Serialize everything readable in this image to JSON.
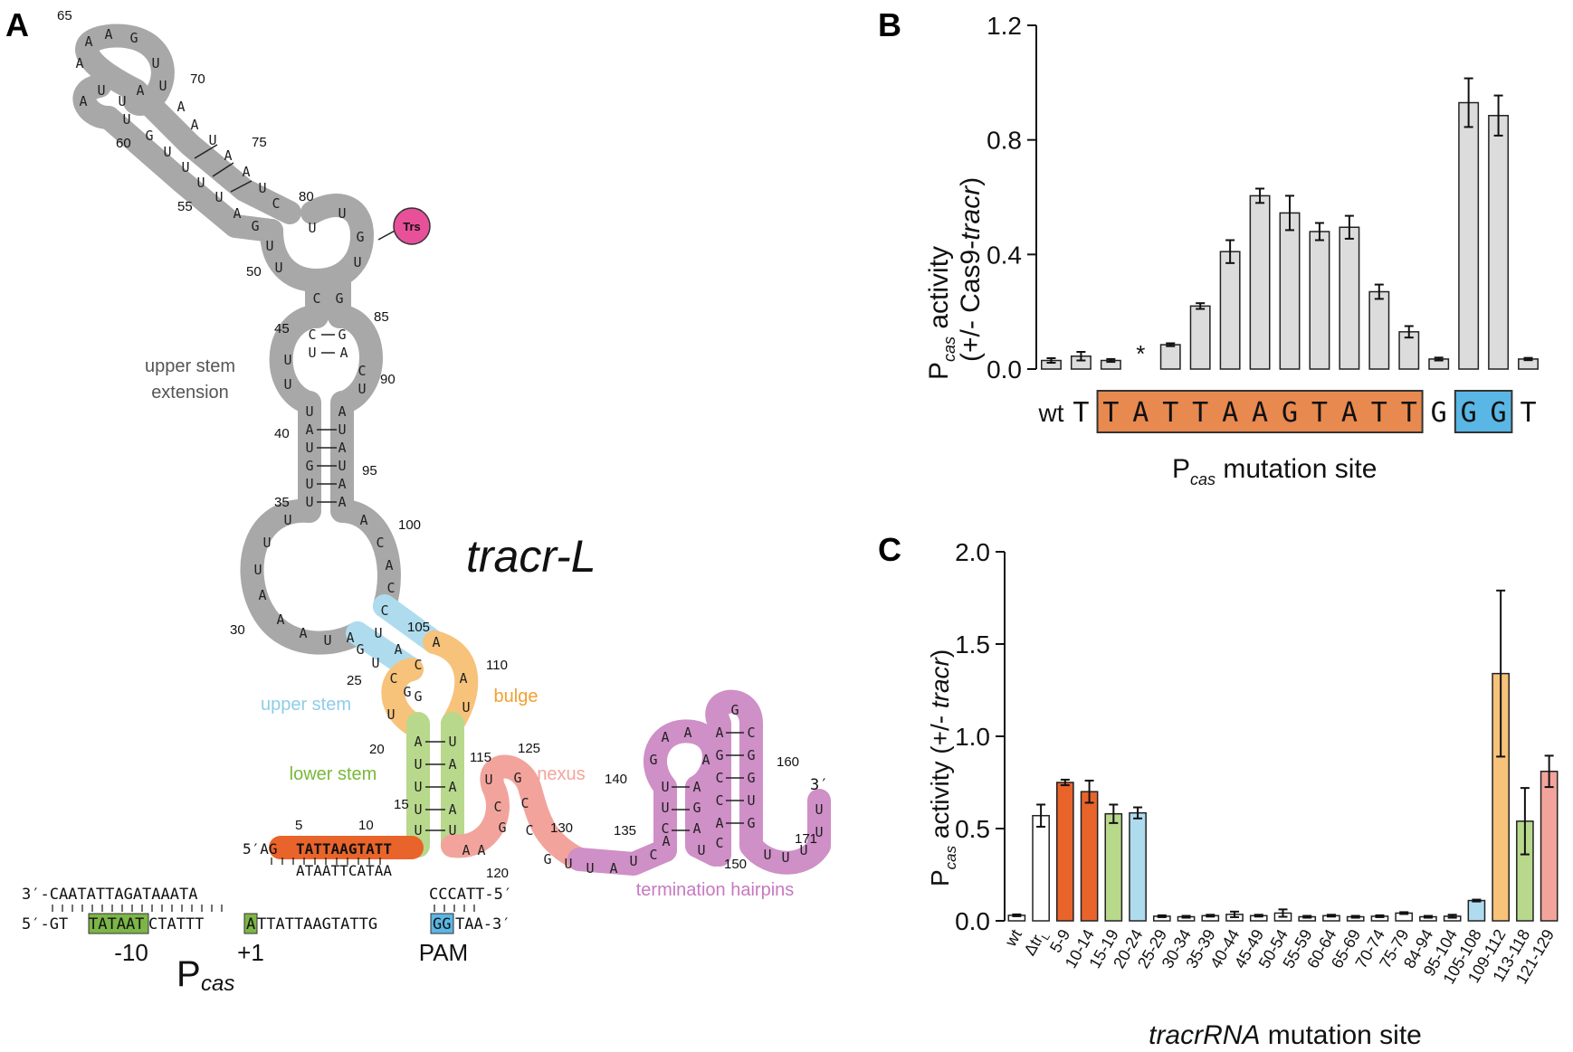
{
  "panels": {
    "a": "A",
    "b": "B",
    "c": "C"
  },
  "panelA": {
    "title": "tracr-L",
    "regions": {
      "upper_stem_extension_1": "upper stem",
      "upper_stem_extension_2": "extension",
      "upper_stem": "upper stem",
      "bulge": "bulge",
      "lower_stem": "lower stem",
      "nexus": "nexus",
      "termination_hairpins": "termination hairpins"
    },
    "badge": "Trs",
    "five_prime": "5′AG",
    "three_prime": "3′",
    "highlight_seq": "TATTAAGTATT",
    "paired_dna": "ATAATTCATAA",
    "promoter": {
      "top_left": "3′-CAATATTAGATAAATA",
      "top_right": "CCCATT-5′",
      "bottom_prefix": "5′-GT",
      "bottom_box_minus10": "TATAAT",
      "bottom_mid": "CTATTT",
      "bottom_box_plus1": "A",
      "bottom_mid2": "TTATTAAGTATTG",
      "bottom_box_pam": "GG",
      "bottom_suffix": "TAA-3′",
      "label_minus10": "-10",
      "label_plus1": "+1",
      "label_pam": "PAM",
      "label_pcas": "P",
      "label_pcas_sub": "cas"
    },
    "numbers": [
      "65",
      "70",
      "75",
      "80",
      "60",
      "55",
      "50",
      "85",
      "45",
      "90",
      "40",
      "95",
      "35",
      "100",
      "30",
      "105",
      "25",
      "110",
      "20",
      "115",
      "125",
      "15",
      "5",
      "10",
      "130",
      "135",
      "120",
      "140",
      "150",
      "160",
      "171"
    ],
    "colors": {
      "gray": "#a8a8a8",
      "upper_stem": "#aedcee",
      "bulge": "#f7c27a",
      "lower_stem": "#b8d88c",
      "nexus": "#f2a49c",
      "termination": "#cf8fc7",
      "orange": "#e8642a",
      "green_box": "#7cb548",
      "blue_box": "#5ab6e4",
      "badge": "#e8509a"
    }
  },
  "chart_data": [
    {
      "type": "bar",
      "panel": "B",
      "ylabel_main": "P",
      "ylabel_sub": "cas",
      "ylabel_rest": " activity",
      "ylabel_line2_a": "(+/- Cas9-",
      "ylabel_line2_b": "tracr",
      "ylabel_line2_c": ")",
      "xlabel_main": "P",
      "xlabel_sub": "cas",
      "xlabel_rest": " mutation site",
      "ylim": [
        0,
        1.2
      ],
      "yticks": [
        "0.0",
        "0.4",
        "0.8",
        "1.2"
      ],
      "categories": [
        "wt",
        "T",
        "T",
        "A",
        "T",
        "T",
        "A",
        "A",
        "G",
        "T",
        "A",
        "T",
        "T",
        "G",
        "G",
        "G",
        "T"
      ],
      "values": [
        0.03,
        0.045,
        0.03,
        null,
        0.085,
        0.22,
        0.41,
        0.605,
        0.545,
        0.48,
        0.495,
        0.27,
        0.13,
        0.035,
        0.93,
        0.885,
        0.035
      ],
      "errors": [
        0.008,
        0.015,
        0.005,
        null,
        0.005,
        0.01,
        0.04,
        0.025,
        0.06,
        0.03,
        0.04,
        0.025,
        0.02,
        0.005,
        0.085,
        0.07,
        0.004
      ],
      "missing_marker": "*",
      "bar_color": "#dcdcdc"
    },
    {
      "type": "bar",
      "panel": "C",
      "ylabel_main": "P",
      "ylabel_sub": "cas",
      "ylabel_rest": " activity (+/- ",
      "ylabel_italic": "tracr",
      "ylabel_end": ")",
      "xlabel_italic": "tracrRNA",
      "xlabel_rest": " mutation site",
      "ylim": [
        0,
        2.0
      ],
      "yticks": [
        "0.0",
        "0.5",
        "1.0",
        "1.5",
        "2.0"
      ],
      "categories": [
        "wt",
        "Δtr",
        "5-9",
        "10-14",
        "15-19",
        "20-24",
        "25-29",
        "30-34",
        "35-39",
        "40-44",
        "45-49",
        "50-54",
        "55-59",
        "60-64",
        "65-69",
        "70-74",
        "75-79",
        "84-94",
        "95-104",
        "105-108",
        "109-112",
        "113-118",
        "121-129"
      ],
      "tick_subscript_index": 1,
      "tick_subscript": "L",
      "values": [
        0.03,
        0.57,
        0.75,
        0.7,
        0.58,
        0.585,
        0.025,
        0.022,
        0.028,
        0.035,
        0.028,
        0.042,
        0.022,
        0.028,
        0.022,
        0.025,
        0.042,
        0.022,
        0.025,
        0.11,
        1.34,
        0.54,
        0.81
      ],
      "errors": [
        0.005,
        0.06,
        0.015,
        0.06,
        0.05,
        0.03,
        0.005,
        0.005,
        0.005,
        0.015,
        0.005,
        0.02,
        0.005,
        0.005,
        0.005,
        0.005,
        0.005,
        0.005,
        0.008,
        0.005,
        0.45,
        0.18,
        0.085
      ],
      "colors": [
        "#ffffff",
        "#ffffff",
        "#e8642a",
        "#e8642a",
        "#b8d88c",
        "#aedcee",
        "#ffffff",
        "#ffffff",
        "#ffffff",
        "#ffffff",
        "#ffffff",
        "#ffffff",
        "#ffffff",
        "#ffffff",
        "#ffffff",
        "#ffffff",
        "#ffffff",
        "#ffffff",
        "#ffffff",
        "#aedcee",
        "#f7c27a",
        "#b8d88c",
        "#f2a49c"
      ]
    }
  ],
  "panelB_highlight": {
    "orange_color": "#e8894f",
    "blue_color": "#5ab6e4"
  }
}
